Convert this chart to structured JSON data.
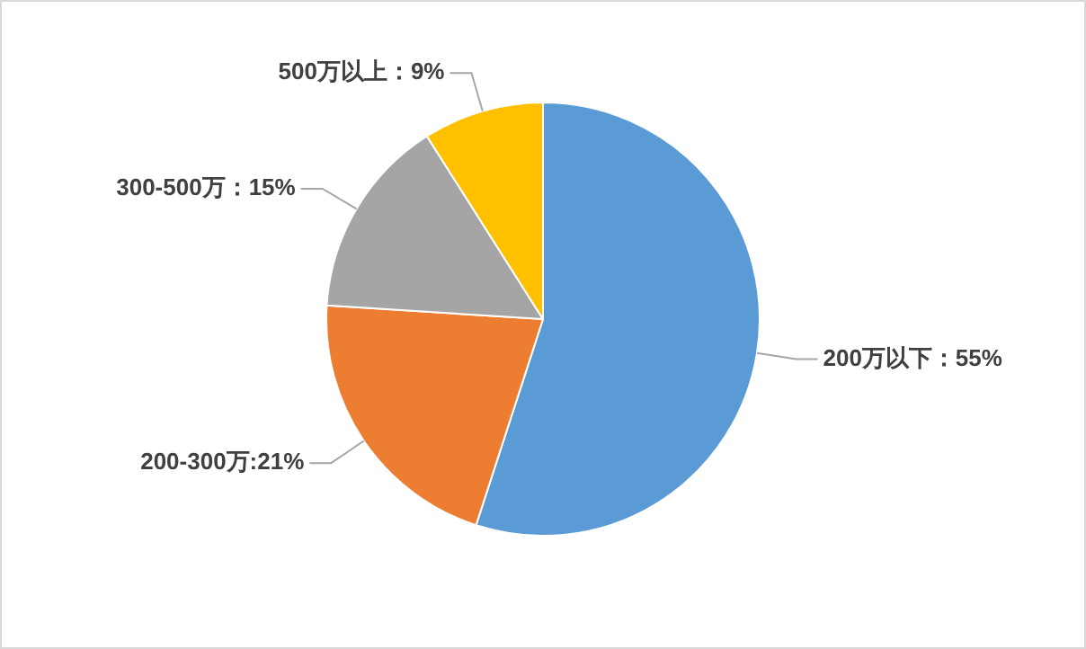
{
  "chart_data": {
    "type": "pie",
    "categories": [
      "200万以下",
      "200-300万",
      "300-500万",
      "500万以上"
    ],
    "values": [
      55,
      21,
      15,
      9
    ],
    "colors": [
      "#5b9bd5",
      "#ed7d31",
      "#a5a5a5",
      "#ffc000"
    ],
    "value_labels": [
      "：55%",
      ":21%",
      "：15%",
      "：9%"
    ],
    "legend": false
  }
}
